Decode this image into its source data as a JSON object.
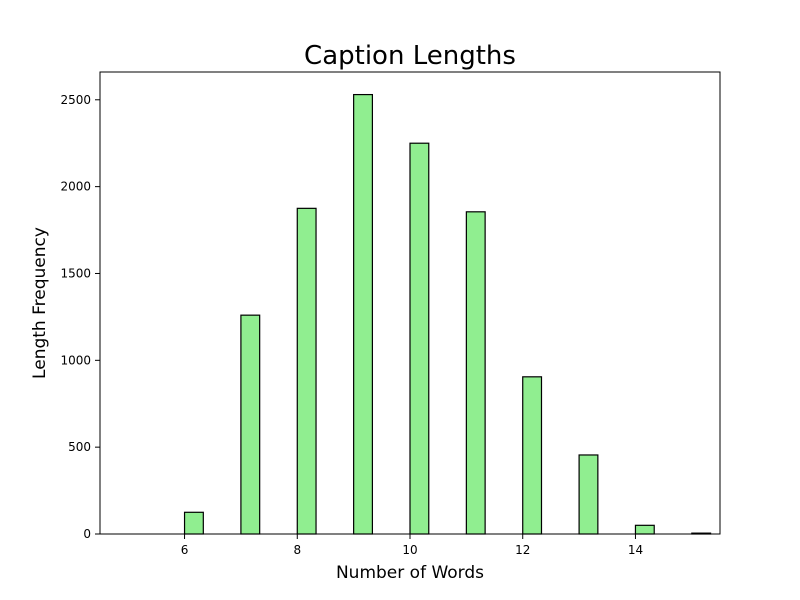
{
  "chart_data": {
    "type": "bar",
    "title": "Caption Lengths",
    "xlabel": "Number of Words",
    "ylabel": "Length Frequency",
    "xlim": [
      4.5,
      15.5
    ],
    "ylim": [
      0,
      2660
    ],
    "xticks": [
      6,
      8,
      10,
      12,
      14
    ],
    "yticks": [
      0,
      500,
      1000,
      1500,
      2000,
      2500
    ],
    "bin_width": 0.333,
    "bins": [
      {
        "x_start": 6.0,
        "value": 125
      },
      {
        "x_start": 7.0,
        "value": 1260
      },
      {
        "x_start": 8.0,
        "value": 1875
      },
      {
        "x_start": 9.0,
        "value": 2530
      },
      {
        "x_start": 10.0,
        "value": 2250
      },
      {
        "x_start": 11.0,
        "value": 1855
      },
      {
        "x_start": 12.0,
        "value": 905
      },
      {
        "x_start": 13.0,
        "value": 455
      },
      {
        "x_start": 14.0,
        "value": 50
      },
      {
        "x_start": 15.0,
        "value": 5
      }
    ],
    "bar_color": "#90ee90",
    "edge_color": "#000000",
    "grid": false,
    "legend": "none"
  }
}
